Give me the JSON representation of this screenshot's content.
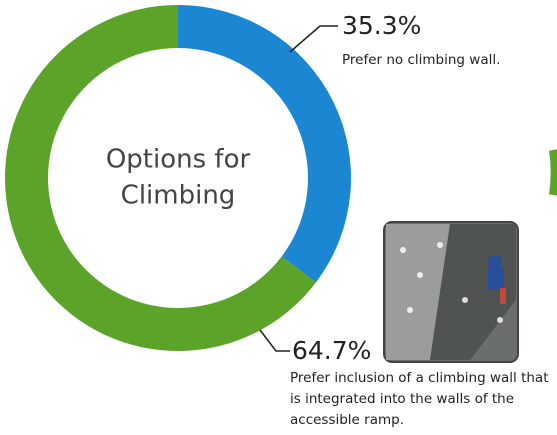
{
  "chart_data": {
    "type": "donut",
    "center_label": [
      "Options for",
      "Climbing"
    ],
    "categories": [
      "Prefer no climbing wall.",
      "Prefer inclusion of a climbing wall that is integrated into the walls of the accessible ramp."
    ],
    "values": [
      35.3,
      64.7
    ],
    "value_labels": [
      "35.3%",
      "64.7%"
    ],
    "colors": [
      "#1b86d2",
      "#5ba329"
    ]
  }
}
